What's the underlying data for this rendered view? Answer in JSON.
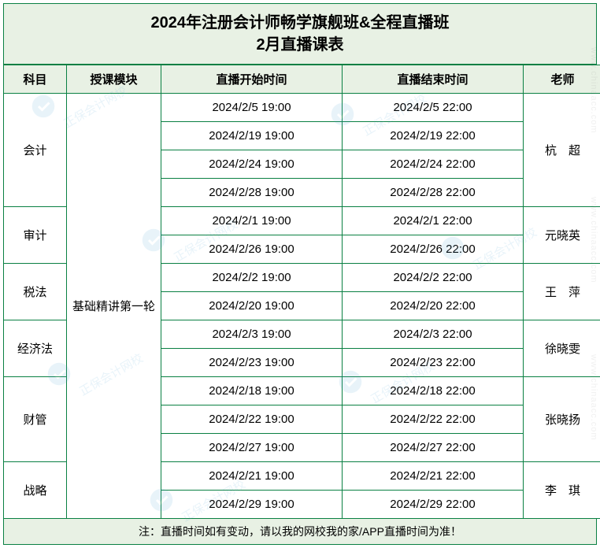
{
  "title_line1": "2024年注册会计师畅学旗舰班&全程直播班",
  "title_line2": "2月直播课表",
  "headers": {
    "subject": "科目",
    "module": "授课模块",
    "start": "直播开始时间",
    "end": "直播结束时间",
    "teacher": "老师"
  },
  "module_name": "基础精讲第一轮",
  "subjects": [
    {
      "name": "会计",
      "teacher": "杭　超",
      "sessions": [
        {
          "start": "2024/2/5 19:00",
          "end": "2024/2/5 22:00"
        },
        {
          "start": "2024/2/19 19:00",
          "end": "2024/2/19 22:00"
        },
        {
          "start": "2024/2/24 19:00",
          "end": "2024/2/24 22:00"
        },
        {
          "start": "2024/2/28 19:00",
          "end": "2024/2/28 22:00"
        }
      ]
    },
    {
      "name": "审计",
      "teacher": "元晓英",
      "sessions": [
        {
          "start": "2024/2/1 19:00",
          "end": "2024/2/1 22:00"
        },
        {
          "start": "2024/2/26 19:00",
          "end": "2024/2/26 22:00"
        }
      ]
    },
    {
      "name": "税法",
      "teacher": "王　萍",
      "sessions": [
        {
          "start": "2024/2/2 19:00",
          "end": "2024/2/2 22:00"
        },
        {
          "start": "2024/2/20 19:00",
          "end": "2024/2/20 22:00"
        }
      ]
    },
    {
      "name": "经济法",
      "teacher": "徐晓雯",
      "sessions": [
        {
          "start": "2024/2/3 19:00",
          "end": "2024/2/3 22:00"
        },
        {
          "start": "2024/2/23 19:00",
          "end": "2024/2/23 22:00"
        }
      ]
    },
    {
      "name": "财管",
      "teacher": "张晓扬",
      "sessions": [
        {
          "start": "2024/2/18 19:00",
          "end": "2024/2/18 22:00"
        },
        {
          "start": "2024/2/22 19:00",
          "end": "2024/2/22 22:00"
        },
        {
          "start": "2024/2/27 19:00",
          "end": "2024/2/27 22:00"
        }
      ]
    },
    {
      "name": "战略",
      "teacher": "李　琪",
      "sessions": [
        {
          "start": "2024/2/21 19:00",
          "end": "2024/2/21 22:00"
        },
        {
          "start": "2024/2/29 19:00",
          "end": "2024/2/29 22:00"
        }
      ]
    }
  ],
  "footer": "注：直播时间如有变动，请以我的网校我的家/APP直播时间为准！",
  "watermark_text": "正保会计网校",
  "watermark_url": "www.chinaacc.com",
  "colors": {
    "border": "#0a8043",
    "header_bg": "#e8f1e4",
    "cell_bg": "#ffffff",
    "text": "#000000",
    "watermark": "#4aa3d6"
  }
}
